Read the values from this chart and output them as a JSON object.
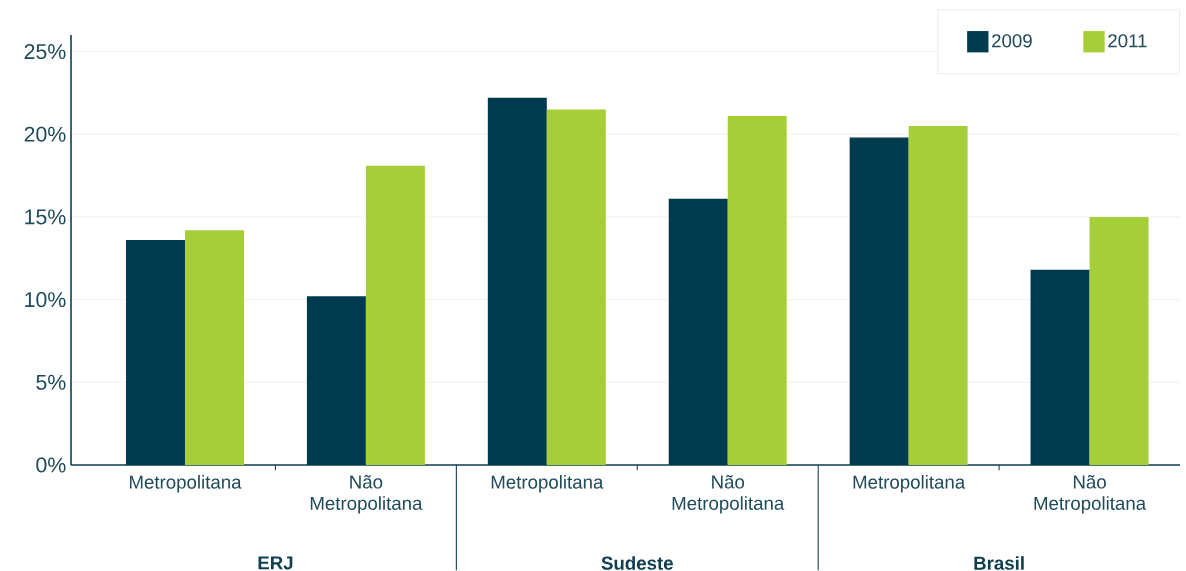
{
  "chart_data": {
    "type": "bar",
    "categories": [
      "Metropolitana",
      "Não Metropolitana",
      "Metropolitana",
      "Não Metropolitana",
      "Metropolitana",
      "Não Metropolitana"
    ],
    "series": [
      {
        "name": "2009",
        "color": "#003a4f",
        "values": [
          13.6,
          10.2,
          22.2,
          16.1,
          19.8,
          11.8
        ]
      },
      {
        "name": "2011",
        "color": "#a6ce39",
        "values": [
          14.2,
          18.1,
          21.5,
          21.1,
          20.5,
          15.0
        ]
      }
    ],
    "annotations": [
      "ERJ",
      "Sudeste",
      "Brasil"
    ],
    "ylim": [
      0,
      26
    ],
    "yticks": [
      {
        "value": 0,
        "label": "0%"
      },
      {
        "value": 5,
        "label": "5%"
      },
      {
        "value": 10,
        "label": "10%"
      },
      {
        "value": 15,
        "label": "15%"
      },
      {
        "value": 20,
        "label": "20%"
      },
      {
        "value": 25,
        "label": "25%"
      }
    ],
    "grid": "y",
    "legend": "top right"
  }
}
